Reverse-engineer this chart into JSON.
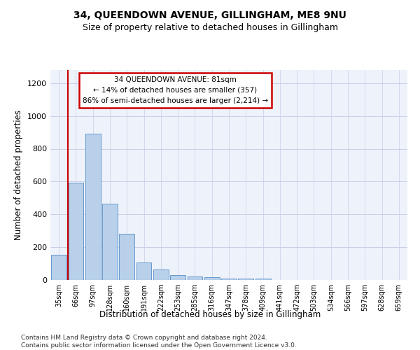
{
  "title": "34, QUEENDOWN AVENUE, GILLINGHAM, ME8 9NU",
  "subtitle": "Size of property relative to detached houses in Gillingham",
  "xlabel": "Distribution of detached houses by size in Gillingham",
  "ylabel": "Number of detached properties",
  "categories": [
    "35sqm",
    "66sqm",
    "97sqm",
    "128sqm",
    "160sqm",
    "191sqm",
    "222sqm",
    "253sqm",
    "285sqm",
    "316sqm",
    "347sqm",
    "378sqm",
    "409sqm",
    "441sqm",
    "472sqm",
    "503sqm",
    "534sqm",
    "566sqm",
    "597sqm",
    "628sqm",
    "659sqm"
  ],
  "values": [
    155,
    595,
    890,
    465,
    280,
    105,
    62,
    30,
    22,
    15,
    10,
    10,
    8,
    0,
    0,
    0,
    0,
    0,
    0,
    0,
    0
  ],
  "bar_color": "#b8d0ea",
  "bar_edgecolor": "#6699cc",
  "annotation_text": "34 QUEENDOWN AVENUE: 81sqm\n← 14% of detached houses are smaller (357)\n86% of semi-detached houses are larger (2,214) →",
  "annotation_box_color": "#ffffff",
  "annotation_box_edgecolor": "#cc0000",
  "vline_color": "#cc0000",
  "vline_x": 0.52,
  "ylim": [
    0,
    1280
  ],
  "yticks": [
    0,
    200,
    400,
    600,
    800,
    1000,
    1200
  ],
  "footnote": "Contains HM Land Registry data © Crown copyright and database right 2024.\nContains public sector information licensed under the Open Government Licence v3.0.",
  "background_color": "#eef2fa",
  "grid_color": "#c8cfe8",
  "title_fontsize": 10,
  "subtitle_fontsize": 9,
  "xlabel_fontsize": 8.5,
  "ylabel_fontsize": 8.5,
  "footnote_fontsize": 6.5
}
